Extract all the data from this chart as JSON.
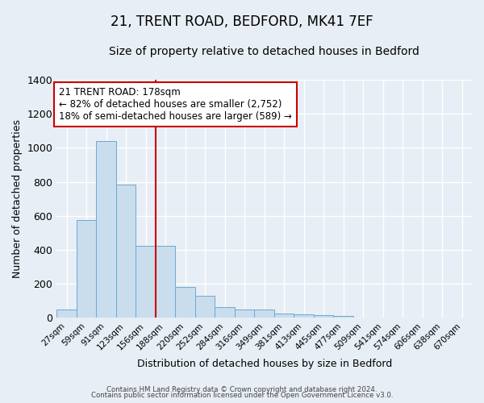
{
  "title": "21, TRENT ROAD, BEDFORD, MK41 7EF",
  "subtitle": "Size of property relative to detached houses in Bedford",
  "xlabel": "Distribution of detached houses by size in Bedford",
  "ylabel": "Number of detached properties",
  "bar_labels": [
    "27sqm",
    "59sqm",
    "91sqm",
    "123sqm",
    "156sqm",
    "188sqm",
    "220sqm",
    "252sqm",
    "284sqm",
    "316sqm",
    "349sqm",
    "381sqm",
    "413sqm",
    "445sqm",
    "477sqm",
    "509sqm",
    "541sqm",
    "574sqm",
    "606sqm",
    "638sqm",
    "670sqm"
  ],
  "bar_values": [
    50,
    575,
    1040,
    785,
    425,
    425,
    180,
    130,
    65,
    50,
    50,
    25,
    20,
    15,
    10,
    0,
    0,
    0,
    0,
    0,
    0
  ],
  "bar_color": "#c9dded",
  "bar_edge_color": "#6aaad4",
  "vline_x": 4.5,
  "vline_color": "#cc0000",
  "ylim": [
    0,
    1400
  ],
  "yticks": [
    0,
    200,
    400,
    600,
    800,
    1000,
    1200,
    1400
  ],
  "annotation_title": "21 TRENT ROAD: 178sqm",
  "annotation_line1": "← 82% of detached houses are smaller (2,752)",
  "annotation_line2": "18% of semi-detached houses are larger (589) →",
  "annotation_box_color": "#ffffff",
  "annotation_box_edge": "#cc0000",
  "footer1": "Contains HM Land Registry data © Crown copyright and database right 2024.",
  "footer2": "Contains public sector information licensed under the Open Government Licence v3.0.",
  "bg_color": "#e8eef5",
  "grid_color": "#ffffff",
  "title_fontsize": 12,
  "subtitle_fontsize": 10
}
